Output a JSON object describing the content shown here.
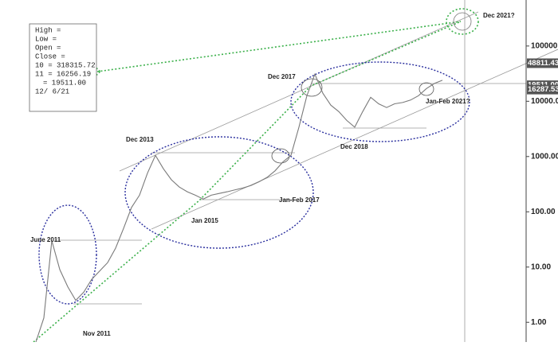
{
  "chart_data": {
    "type": "line",
    "log_scale": true,
    "color": "#7a7a7a",
    "categories": [
      null,
      null,
      null,
      null,
      null,
      null,
      null,
      null,
      null,
      null,
      null,
      null,
      null,
      null,
      null,
      null,
      null,
      null,
      null,
      null,
      null,
      null,
      null,
      null,
      null,
      null,
      null,
      null,
      null,
      null,
      null,
      null,
      null,
      null,
      null,
      null,
      null,
      null,
      null,
      null,
      null,
      null,
      null,
      null,
      null,
      null,
      null,
      null,
      null,
      null,
      null,
      null
    ],
    "values": [
      0.44,
      1.2,
      30,
      9,
      4.4,
      2.5,
      3.5,
      6,
      8.5,
      12,
      22,
      50,
      120,
      200,
      500,
      1050,
      600,
      380,
      280,
      230,
      200,
      170,
      200,
      215,
      230,
      250,
      270,
      300,
      350,
      420,
      550,
      800,
      1050,
      3400,
      12600,
      31000,
      14000,
      8500,
      6500,
      4500,
      3400,
      6500,
      11800,
      9000,
      7700,
      9000,
      9500,
      10500,
      12600,
      17000,
      21000,
      24000
    ],
    "ylim": [
      0.44,
      680000
    ],
    "yticks": [
      {
        "value": 1,
        "label": "1.00"
      },
      {
        "value": 10,
        "label": "10.00"
      },
      {
        "value": 100,
        "label": "100.00"
      },
      {
        "value": 1000,
        "label": "1000.00"
      },
      {
        "value": 10000,
        "label": "10000.0"
      },
      {
        "value": 100000,
        "label": "100000."
      }
    ],
    "price_labels": [
      48811.43,
      {
        "value": 19511,
        "label": "19511.00"
      },
      {
        "value": 16287.53,
        "label": "16287.53"
      }
    ],
    "info_panel": [
      "High  =",
      "Low   =",
      "Open  =",
      "Close =",
      "10 = 318315.72",
      "11 =  16256.19",
      "=  19511.00",
      "12/  6/21"
    ],
    "annotations": [
      "June 2011",
      "Nov 2011",
      "Dec 2013",
      "Jan 2015",
      "Jan-Feb  2017",
      "Dec 2017",
      "Dec 2018",
      "Jan-Feb  2021?",
      "Dec 2021?"
    ]
  }
}
